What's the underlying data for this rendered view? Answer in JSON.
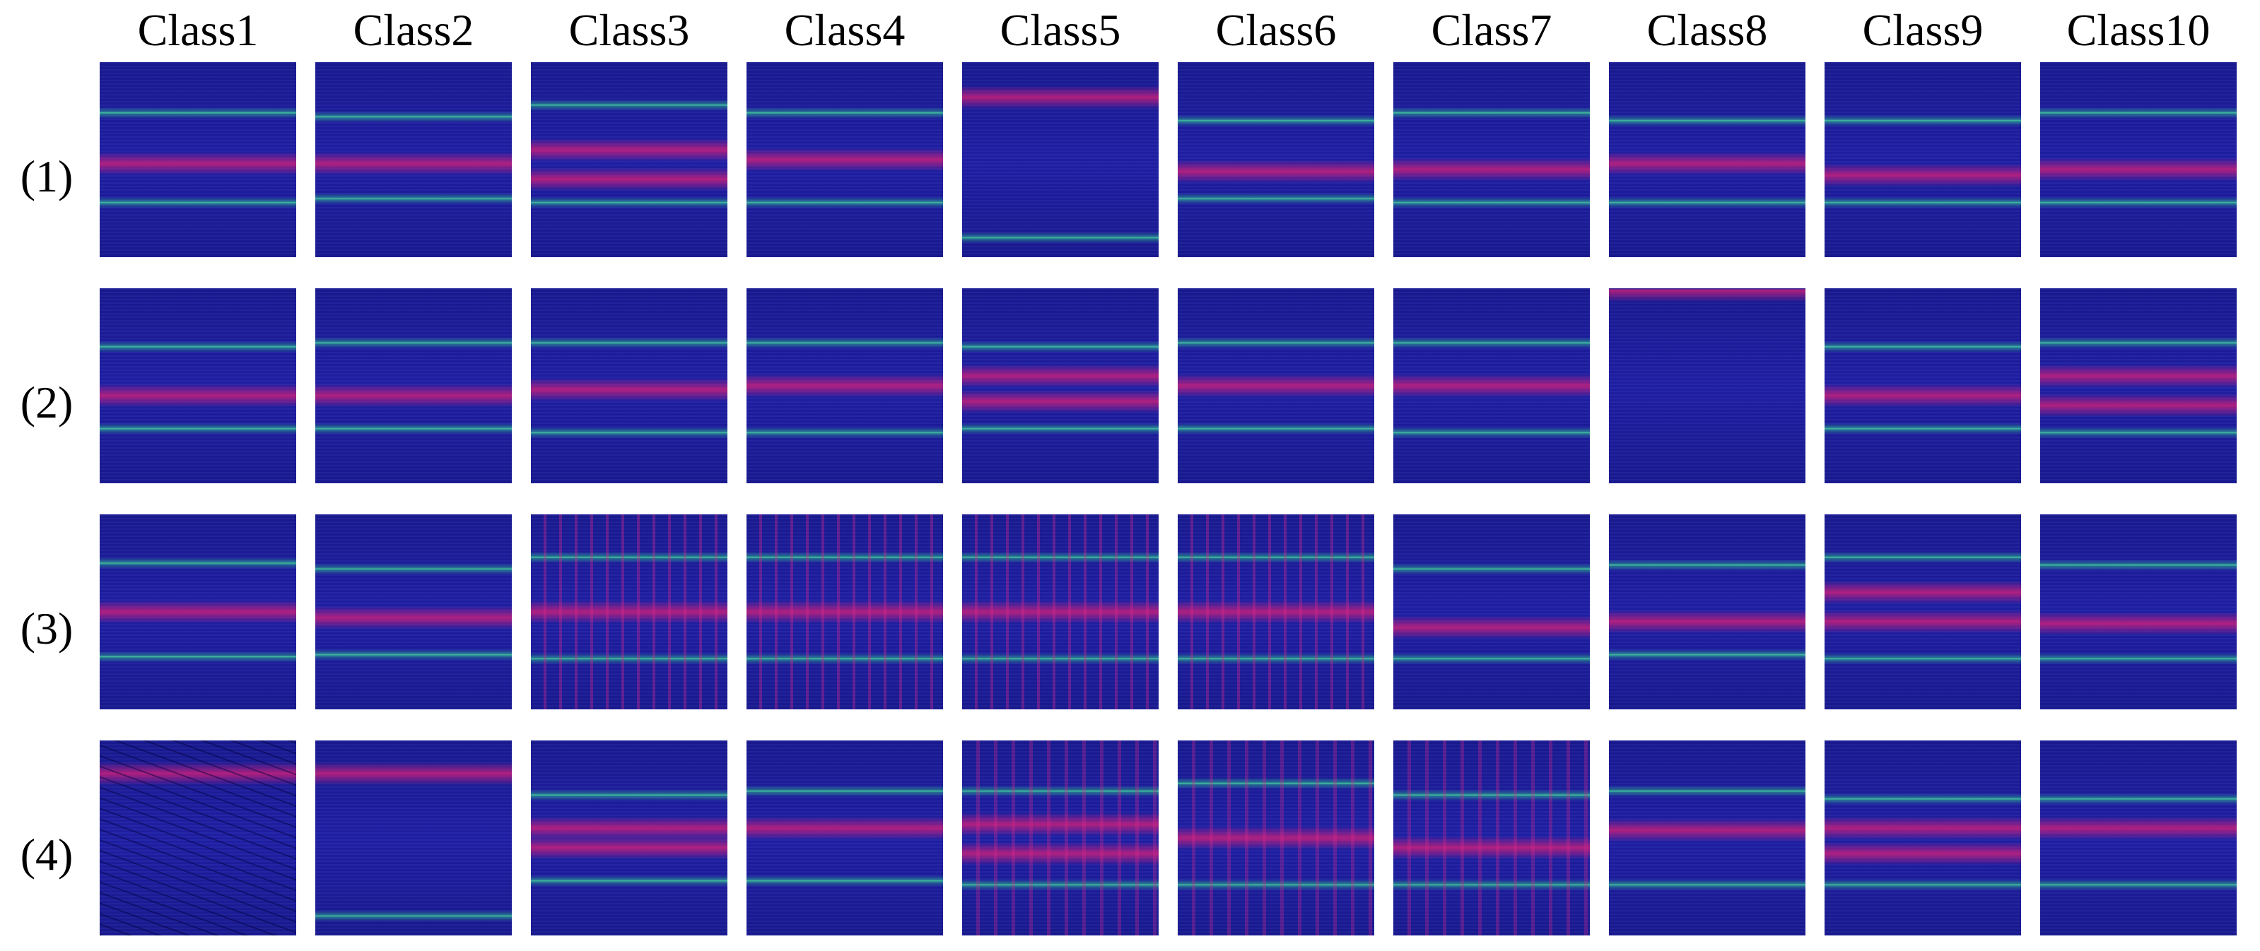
{
  "figure": {
    "column_headers": [
      "Class1",
      "Class2",
      "Class3",
      "Class4",
      "Class5",
      "Class6",
      "Class7",
      "Class8",
      "Class9",
      "Class10"
    ],
    "row_labels": [
      "(1)",
      "(2)",
      "(3)",
      "(4)"
    ],
    "colors": {
      "background": "#1e1ea0",
      "magenta_band": "#c8207a",
      "green_band": "#2fd08a",
      "dark_blue": "#14147a",
      "text": "#000000"
    }
  }
}
